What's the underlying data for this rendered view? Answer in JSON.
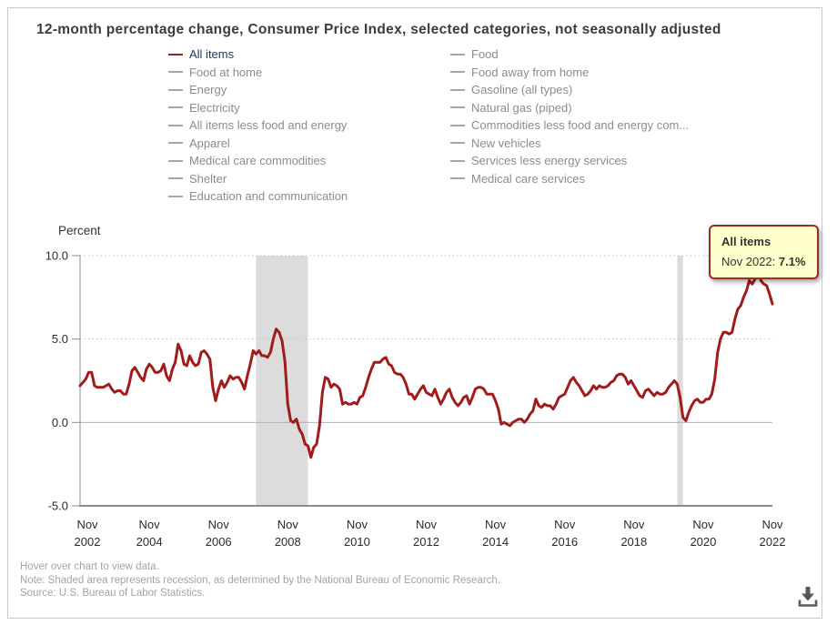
{
  "title": "12-month percentage change, Consumer Price Index, selected categories, not seasonally adjusted",
  "axis_label": "Percent",
  "legend": {
    "left": [
      {
        "label": "All items",
        "active": true
      },
      {
        "label": "Food at home",
        "active": false
      },
      {
        "label": "Energy",
        "active": false
      },
      {
        "label": "Electricity",
        "active": false
      },
      {
        "label": "All items less food and energy",
        "active": false
      },
      {
        "label": "Apparel",
        "active": false
      },
      {
        "label": "Medical care commodities",
        "active": false
      },
      {
        "label": "Shelter",
        "active": false
      },
      {
        "label": "Education and communication",
        "active": false
      }
    ],
    "right": [
      {
        "label": "Food",
        "active": false
      },
      {
        "label": "Food away from home",
        "active": false
      },
      {
        "label": "Gasoline (all types)",
        "active": false
      },
      {
        "label": "Natural gas (piped)",
        "active": false
      },
      {
        "label": "Commodities less food and energy com...",
        "active": false
      },
      {
        "label": "New vehicles",
        "active": false
      },
      {
        "label": "Services less energy services",
        "active": false
      },
      {
        "label": "Medical care services",
        "active": false
      }
    ]
  },
  "tooltip": {
    "title": "All items",
    "date_label": "Nov 2022: ",
    "value": "7.1%"
  },
  "footer": {
    "hover": "Hover over chart to view data.",
    "note": "Note: Shaded area represents recession, as determined by the National Bureau of Economic Research.",
    "source": "Source: U.S. Bureau of Labor Statistics."
  },
  "icons": {
    "download": "download-arrow-into-tray"
  },
  "colors": {
    "line": "#a01c1c",
    "active_legend_text": "#1f3864",
    "recession_band": "#dcdcdc",
    "grid_dotted": "#c4c4c4",
    "zero_line": "#b3b3b3",
    "axis": "#8c8c8c",
    "tick_text": "#2b2b2b",
    "tooltip_bg": "#ffffcc",
    "tooltip_border": "#9e2b25"
  },
  "chart_data": {
    "type": "line",
    "title": "12-month percentage change, Consumer Price Index, selected categories, not seasonally adjusted",
    "ylabel": "Percent",
    "xlabel": "",
    "ylim": [
      -5.0,
      10.0
    ],
    "y_ticks": [
      10.0,
      5.0,
      0.0,
      -5.0
    ],
    "y_tick_labels": [
      "10.0",
      "5.0",
      "0.0",
      "-5.0"
    ],
    "x_start": "2002-11",
    "x_end": "2022-11",
    "frequency": "monthly",
    "x_tick_labels": [
      [
        "Nov",
        "2002"
      ],
      [
        "Nov",
        "2004"
      ],
      [
        "Nov",
        "2006"
      ],
      [
        "Nov",
        "2008"
      ],
      [
        "Nov",
        "2010"
      ],
      [
        "Nov",
        "2012"
      ],
      [
        "Nov",
        "2014"
      ],
      [
        "Nov",
        "2016"
      ],
      [
        "Nov",
        "2018"
      ],
      [
        "Nov",
        "2020"
      ],
      [
        "Nov",
        "2022"
      ]
    ],
    "x_tick_interval_months": 24,
    "grid": "horizontal-dotted, solid zero line",
    "legend_position": "top",
    "recession_bands": [
      {
        "start": "2007-12",
        "end": "2009-06"
      },
      {
        "start": "2020-02",
        "end": "2020-04"
      }
    ],
    "series": [
      {
        "name": "All items",
        "color": "#a01c1c",
        "values": [
          2.2,
          2.4,
          2.6,
          3.0,
          3.0,
          2.2,
          2.1,
          2.1,
          2.1,
          2.2,
          2.3,
          2.0,
          1.8,
          1.9,
          1.9,
          1.7,
          1.7,
          2.3,
          3.1,
          3.3,
          3.0,
          2.7,
          2.5,
          3.2,
          3.5,
          3.3,
          3.0,
          3.0,
          3.1,
          3.5,
          2.8,
          2.5,
          3.2,
          3.6,
          4.7,
          4.3,
          3.5,
          3.4,
          4.0,
          3.6,
          3.4,
          3.5,
          4.2,
          4.3,
          4.1,
          3.8,
          2.1,
          1.3,
          2.0,
          2.5,
          2.1,
          2.4,
          2.8,
          2.6,
          2.7,
          2.7,
          2.4,
          2.0,
          2.8,
          3.5,
          4.3,
          4.1,
          4.3,
          4.0,
          4.0,
          3.9,
          4.2,
          5.0,
          5.6,
          5.4,
          4.9,
          3.7,
          1.1,
          0.1,
          0.0,
          0.2,
          -0.4,
          -0.7,
          -1.3,
          -1.4,
          -2.1,
          -1.5,
          -1.3,
          -0.2,
          1.8,
          2.7,
          2.6,
          2.1,
          2.3,
          2.2,
          2.0,
          1.1,
          1.2,
          1.1,
          1.1,
          1.2,
          1.1,
          1.5,
          1.6,
          2.1,
          2.7,
          3.2,
          3.6,
          3.6,
          3.6,
          3.8,
          3.9,
          3.5,
          3.4,
          3.0,
          2.9,
          2.9,
          2.7,
          2.3,
          1.7,
          1.7,
          1.4,
          1.7,
          2.0,
          2.2,
          1.8,
          1.7,
          1.6,
          2.0,
          1.5,
          1.1,
          1.4,
          1.8,
          2.0,
          1.5,
          1.2,
          1.0,
          1.2,
          1.5,
          1.6,
          1.1,
          1.5,
          2.0,
          2.1,
          2.1,
          2.0,
          1.7,
          1.7,
          1.7,
          1.3,
          0.8,
          -0.1,
          0.0,
          -0.1,
          -0.2,
          0.0,
          0.1,
          0.2,
          0.2,
          0.0,
          0.2,
          0.5,
          0.7,
          1.4,
          1.0,
          0.9,
          1.1,
          1.0,
          1.0,
          0.8,
          1.1,
          1.5,
          1.6,
          1.7,
          2.1,
          2.5,
          2.7,
          2.4,
          2.2,
          1.9,
          1.6,
          1.7,
          1.9,
          2.2,
          2.0,
          2.2,
          2.1,
          2.1,
          2.2,
          2.4,
          2.5,
          2.8,
          2.9,
          2.9,
          2.7,
          2.3,
          2.5,
          2.2,
          1.9,
          1.6,
          1.5,
          1.9,
          2.0,
          1.8,
          1.6,
          1.8,
          1.7,
          1.7,
          1.8,
          2.1,
          2.3,
          2.5,
          2.3,
          1.5,
          0.3,
          0.1,
          0.6,
          1.0,
          1.3,
          1.4,
          1.2,
          1.2,
          1.4,
          1.4,
          1.7,
          2.6,
          4.2,
          5.0,
          5.4,
          5.4,
          5.3,
          5.4,
          6.2,
          6.8,
          7.0,
          7.5,
          7.9,
          8.5,
          8.3,
          8.6,
          9.1,
          8.5,
          8.3,
          8.2,
          7.7,
          7.1
        ]
      }
    ],
    "last_point": {
      "x": "Nov 2022",
      "y": 7.1
    }
  }
}
